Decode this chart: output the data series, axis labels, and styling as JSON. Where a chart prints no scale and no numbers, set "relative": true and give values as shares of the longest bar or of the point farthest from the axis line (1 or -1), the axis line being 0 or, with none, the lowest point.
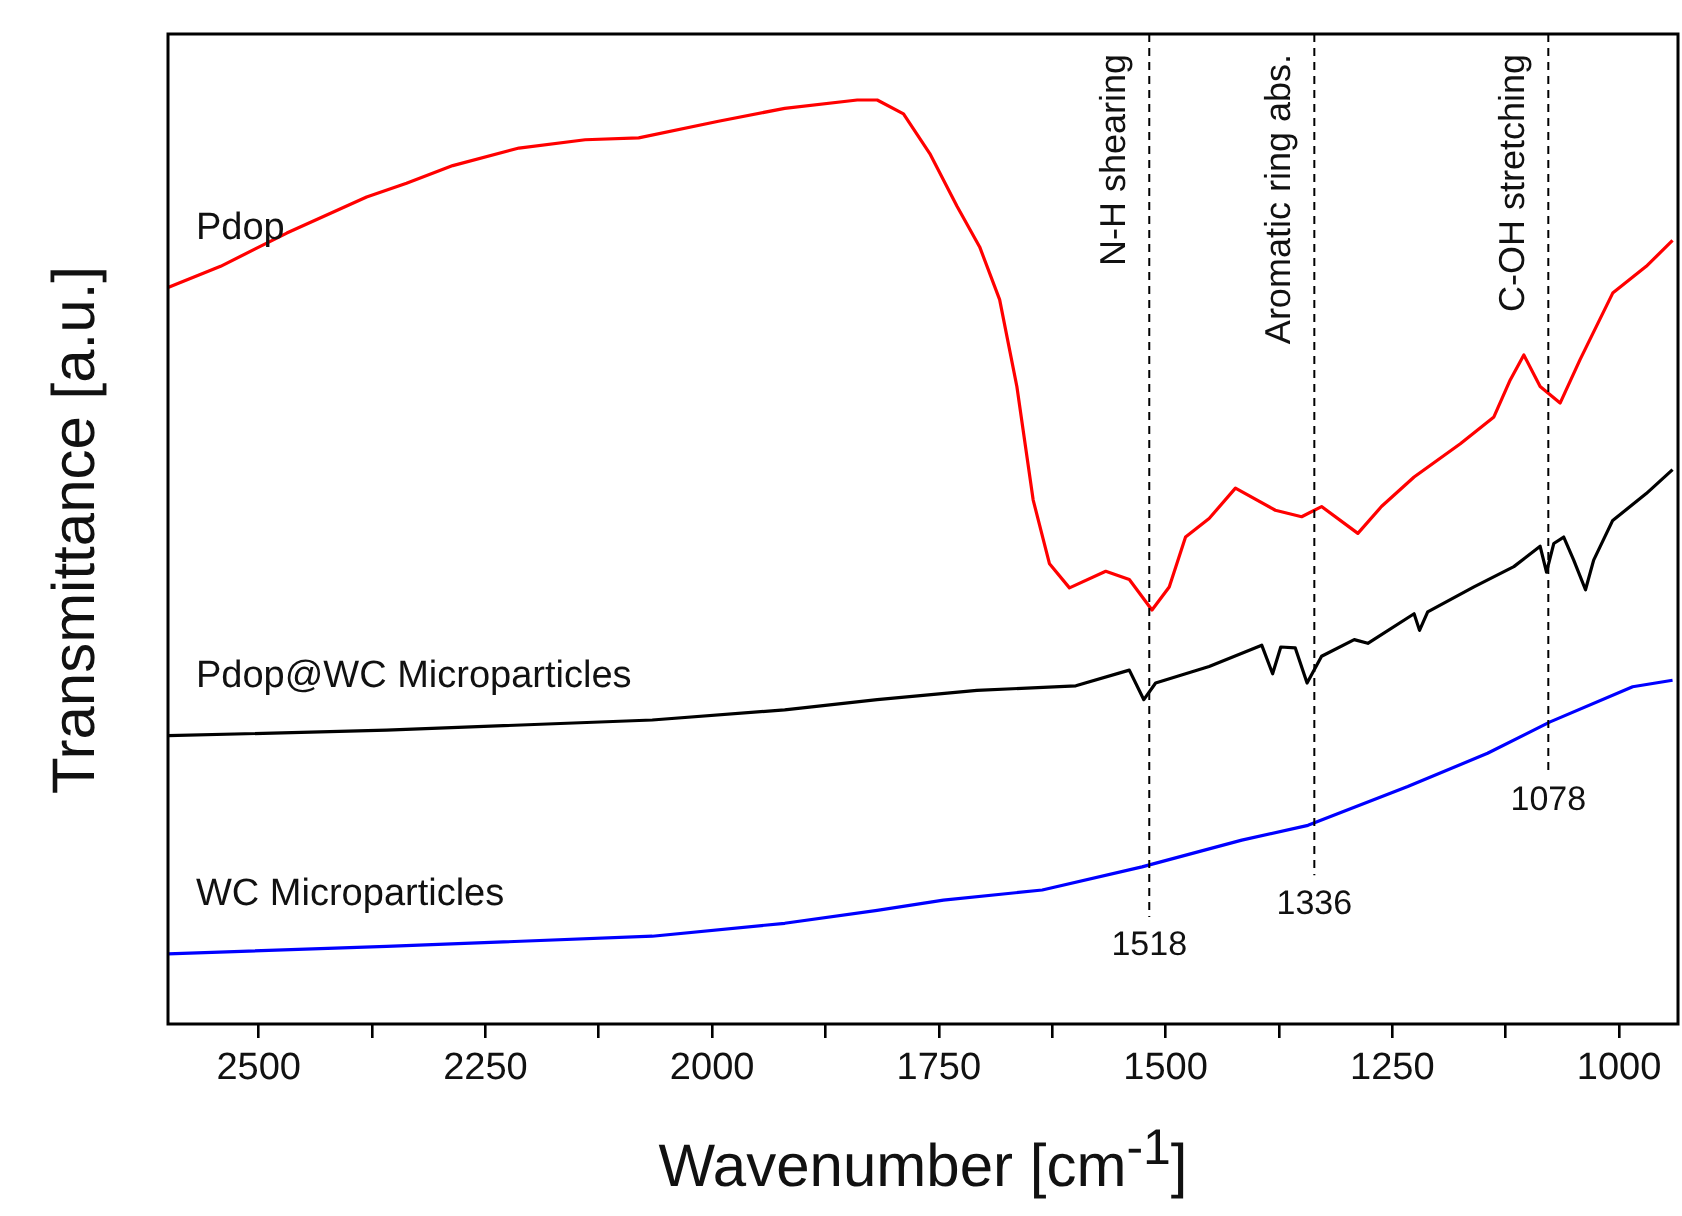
{
  "chart_data": {
    "type": "line",
    "xlabel": "Wavenumber [cm$^{-1}$]",
    "ylabel": "Transmittance [a.u.]",
    "relative": true,
    "tick_labels": "x",
    "marker": "none",
    "legend": false,
    "xlim": [
      2600,
      935
    ],
    "xticks": [
      2500,
      {
        "value": 2375,
        "label": null
      },
      2250,
      {
        "value": 2125,
        "label": null
      },
      2000,
      {
        "value": 1875,
        "label": null
      },
      1750,
      {
        "value": 1625,
        "label": null
      },
      1500,
      {
        "value": 1375,
        "label": null
      },
      1250,
      {
        "value": 1125,
        "label": null
      },
      1000
    ],
    "series": [
      {
        "name": "Pdop",
        "color": "#ff0000",
        "x": [
          2600,
          2542,
          2469,
          2381,
          2337,
          2286,
          2213,
          2140,
          2081,
          1993,
          1920,
          1840,
          1818,
          1789,
          1760,
          1730,
          1705,
          1683,
          1664,
          1646,
          1628,
          1606,
          1566,
          1540,
          1515,
          1496,
          1478,
          1452,
          1423,
          1379,
          1350,
          1328,
          1288,
          1262,
          1226,
          1175,
          1138,
          1120,
          1105,
          1087,
          1065,
          1043,
          1007,
          970,
          941
        ],
        "values": [
          0.797,
          0.82,
          0.856,
          0.895,
          0.91,
          0.929,
          0.948,
          0.957,
          0.959,
          0.977,
          0.991,
          1.0,
          1.0,
          0.985,
          0.942,
          0.885,
          0.841,
          0.784,
          0.69,
          0.567,
          0.498,
          0.472,
          0.49,
          0.481,
          0.448,
          0.473,
          0.527,
          0.547,
          0.58,
          0.556,
          0.549,
          0.56,
          0.531,
          0.56,
          0.592,
          0.628,
          0.657,
          0.697,
          0.724,
          0.69,
          0.672,
          0.719,
          0.791,
          0.82,
          0.848
        ]
      },
      {
        "name": "Pdop@WC Microparticles",
        "color": "#000000",
        "x": [
          2600,
          2359,
          2066,
          1920,
          1818,
          1708,
          1599,
          1540,
          1524,
          1511,
          1452,
          1394,
          1382,
          1373,
          1357,
          1344,
          1328,
          1292,
          1277,
          1226,
          1220,
          1211,
          1160,
          1116,
          1087,
          1080,
          1072,
          1061,
          1050,
          1037,
          1028,
          1007,
          970,
          941
        ],
        "values": [
          0.312,
          0.318,
          0.329,
          0.34,
          0.351,
          0.361,
          0.366,
          0.383,
          0.351,
          0.369,
          0.387,
          0.41,
          0.379,
          0.408,
          0.407,
          0.369,
          0.398,
          0.416,
          0.412,
          0.444,
          0.426,
          0.446,
          0.473,
          0.495,
          0.517,
          0.489,
          0.52,
          0.527,
          0.502,
          0.47,
          0.502,
          0.545,
          0.574,
          0.6
        ]
      },
      {
        "name": "WC Microparticles",
        "color": "#0000ff",
        "x": [
          2600,
          2359,
          2066,
          1920,
          1818,
          1745,
          1636,
          1526,
          1416,
          1343,
          1233,
          1145,
          1076,
          985,
          941
        ],
        "values": [
          0.076,
          0.084,
          0.095,
          0.109,
          0.123,
          0.134,
          0.145,
          0.17,
          0.199,
          0.215,
          0.257,
          0.293,
          0.327,
          0.365,
          0.372
        ]
      }
    ],
    "annotations": [
      "1518",
      "1336",
      "1078"
    ],
    "ref_lines": [
      {
        "axis": "x",
        "value": 1518,
        "label": "N-H shearing",
        "line_style": "dashed",
        "color": "#000000"
      },
      {
        "axis": "x",
        "value": 1336,
        "label": "Aromatic ring abs.",
        "line_style": "dashed",
        "color": "#000000"
      },
      {
        "axis": "x",
        "value": 1078,
        "label": "C-OH stretching",
        "line_style": "dashed",
        "color": "#000000"
      }
    ]
  }
}
